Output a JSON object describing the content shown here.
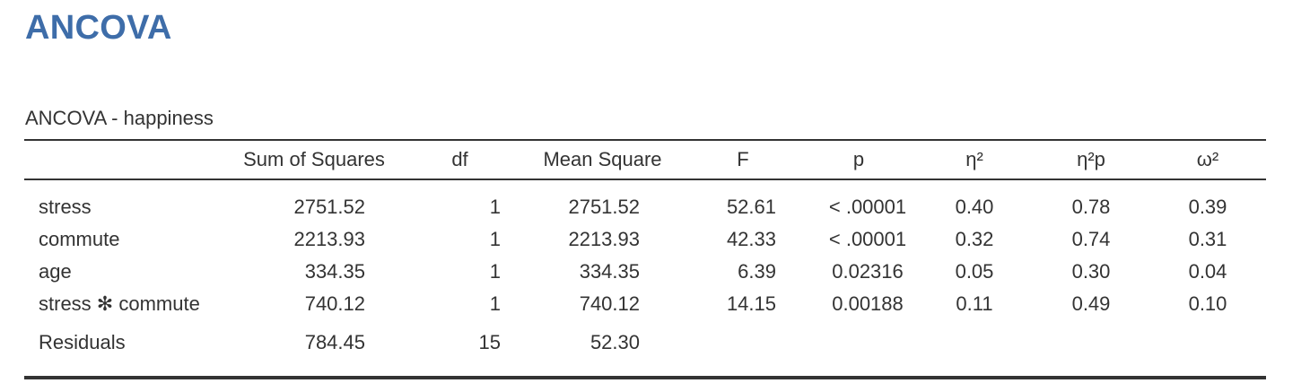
{
  "heading": "ANCOVA",
  "table": {
    "title": "ANCOVA - happiness",
    "columns": [
      "",
      "Sum of Squares",
      "df",
      "Mean Square",
      "F",
      "p",
      "η²",
      "η²p",
      "ω²"
    ],
    "rows": [
      {
        "term": "stress",
        "ss": "2751.52",
        "df": "1",
        "ms": "2751.52",
        "f": "52.61",
        "p": "< .00001",
        "eta": "0.40",
        "etap": "0.78",
        "omega": "0.39"
      },
      {
        "term": "commute",
        "ss": "2213.93",
        "df": "1",
        "ms": "2213.93",
        "f": "42.33",
        "p": "< .00001",
        "eta": "0.32",
        "etap": "0.74",
        "omega": "0.31"
      },
      {
        "term": "age",
        "ss": "334.35",
        "df": "1",
        "ms": "334.35",
        "f": "6.39",
        "p": "0.02316",
        "eta": "0.05",
        "etap": "0.30",
        "omega": "0.04"
      },
      {
        "term": "stress ✻ commute",
        "ss": "740.12",
        "df": "1",
        "ms": "740.12",
        "f": "14.15",
        "p": "0.00188",
        "eta": "0.11",
        "etap": "0.49",
        "omega": "0.10"
      }
    ],
    "residuals": {
      "term": "Residuals",
      "ss": "784.45",
      "df": "15",
      "ms": "52.30"
    }
  }
}
